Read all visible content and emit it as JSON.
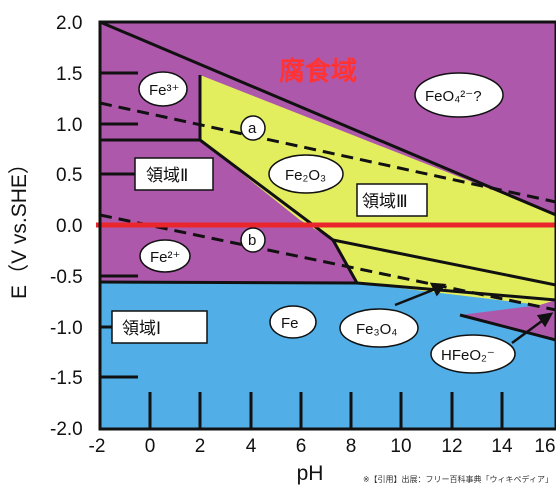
{
  "diagram": {
    "colors": {
      "corrosion": "#ae58ac",
      "passive": "#e3ee5f",
      "immunity": "#51aee6",
      "zero_line": "#e8262b",
      "corrosion_text": "#ff3333"
    },
    "x_axis": {
      "label": "pH",
      "range": [
        -2,
        16
      ],
      "ticks": [
        "-2",
        "0",
        "2",
        "4",
        "6",
        "8",
        "10",
        "12",
        "14",
        "16"
      ]
    },
    "y_axis": {
      "label": "E（V vs.SHE）",
      "range": [
        -2.0,
        2.0
      ],
      "ticks": [
        "2.0",
        "1.5",
        "1.0",
        "0.5",
        "0.0",
        "-0.5",
        "-1.0",
        "-1.5",
        "-2.0"
      ]
    },
    "regions": {
      "corrosion": "腐食域",
      "region_1": "領域Ⅰ",
      "region_2": "領域Ⅱ",
      "region_3": "領域Ⅲ"
    },
    "species": {
      "fe3": "Fe³⁺",
      "fe2": "Fe²⁺",
      "fe2o3": "Fe₂O₃",
      "feo4": "FeO₄²⁻?",
      "fe": "Fe",
      "fe3o4": "Fe₃O₄",
      "hfeo2": "HFeO₂⁻"
    },
    "water_lines": {
      "upper": "a",
      "lower": "b"
    },
    "credit": "※【引用】出展：フリー百科事典「ウィキペディア」"
  }
}
